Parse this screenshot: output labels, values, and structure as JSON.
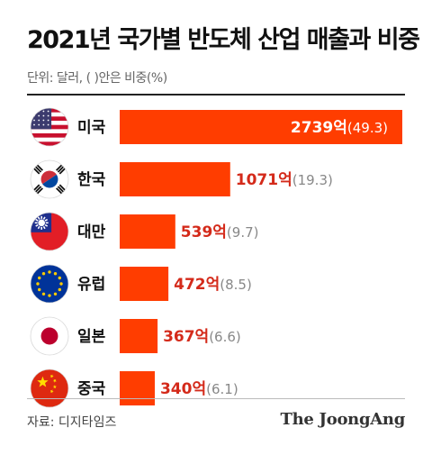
{
  "title": "2021년 국가별 반도체 산업 매출과 비중",
  "unit_note": "단위: 달러, ( )안은 비중(%)",
  "source": "자료: 디지타임즈",
  "logo": "The JoongAng",
  "colors": {
    "bar": "#ff3d00",
    "value_text": "#d42a1a",
    "share_text": "#888888",
    "value_text_inside": "#ffffff"
  },
  "chart_data": {
    "type": "bar",
    "orientation": "horizontal",
    "title": "2021년 국가별 반도체 산업 매출과 비중",
    "xlabel": "",
    "ylabel": "",
    "grid": false,
    "categories": [
      "미국",
      "한국",
      "대만",
      "유럽",
      "일본",
      "중국"
    ],
    "flags": [
      "us-flag-icon",
      "korea-flag-icon",
      "taiwan-flag-icon",
      "eu-flag-icon",
      "japan-flag-icon",
      "china-flag-icon"
    ],
    "values": [
      2739,
      1071,
      539,
      472,
      367,
      340
    ],
    "value_labels": [
      "2739억",
      "1071억",
      "539억",
      "472억",
      "367억",
      "340억"
    ],
    "shares": [
      "(49.3)",
      "(19.3)",
      "(9.7)",
      "(8.5)",
      "(6.6)",
      "(6.1)"
    ],
    "xlim": [
      0,
      2739
    ]
  }
}
